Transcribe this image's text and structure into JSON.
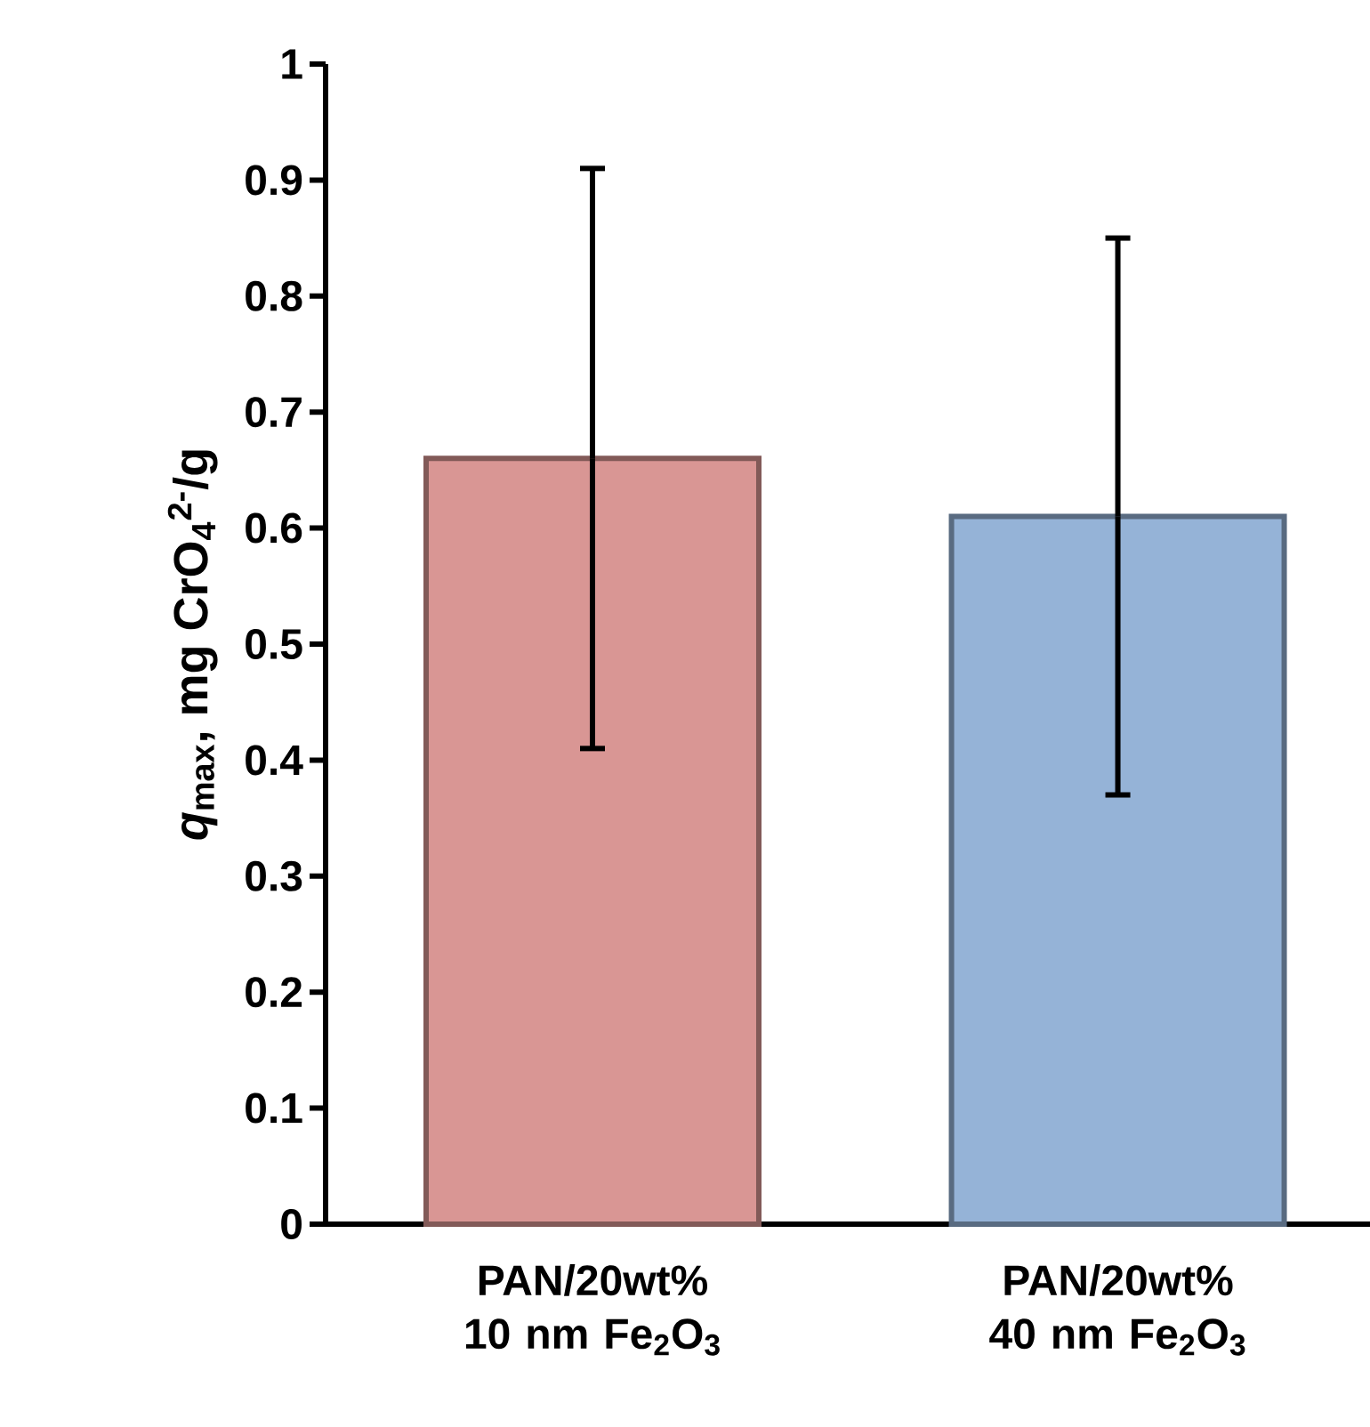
{
  "chart_data": {
    "type": "bar",
    "ylabel": "*q*$_{max}$, mg CrO$_{4}$$^{2-}$/g",
    "categories": [
      "PAN/20wt% 10 nm Fe$_{2}$O$_{3}$",
      "PAN/20wt% 40 nm Fe$_{2}$O$_{3}$"
    ],
    "values": [
      0.66,
      0.61
    ],
    "errors": [
      0.25,
      0.24
    ],
    "colors": [
      "#d99694",
      "#95b3d7"
    ],
    "ylim": [
      0,
      1
    ],
    "yticks": [
      0,
      0.1,
      0.2,
      0.3,
      0.4,
      0.5,
      0.6,
      0.7,
      0.8,
      0.9,
      1
    ]
  }
}
